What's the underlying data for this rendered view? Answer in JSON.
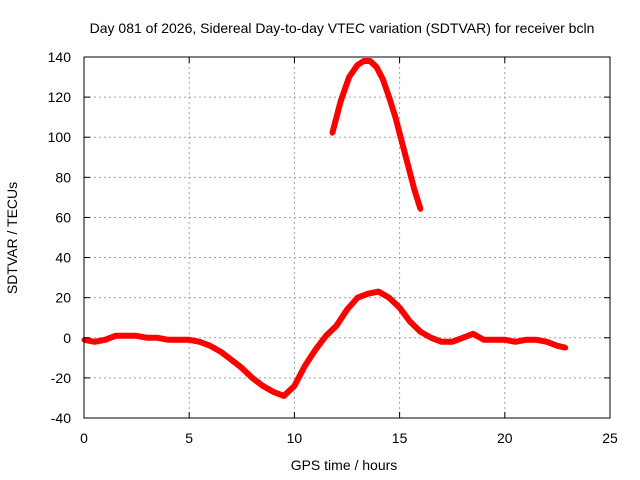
{
  "colors": {
    "series": "#ff0000",
    "axis": "#000000",
    "grid": "#a0a0a0",
    "background": "#ffffff"
  },
  "chart_data": {
    "type": "line",
    "title": "Day 081 of 2026, Sidereal Day-to-day VTEC variation (SDTVAR) for receiver bcln",
    "xlabel": "GPS time / hours",
    "ylabel": "SDTVAR / TECUs",
    "xlim": [
      0,
      25
    ],
    "ylim": [
      -40,
      140
    ],
    "xticks": [
      0,
      5,
      10,
      15,
      20,
      25
    ],
    "yticks": [
      -40,
      -20,
      0,
      20,
      40,
      60,
      80,
      100,
      120,
      140
    ],
    "grid": true,
    "legend": "none",
    "series": [
      {
        "name": "main trace",
        "x": [
          0,
          0.5,
          1.0,
          1.5,
          2.0,
          2.5,
          3.0,
          3.5,
          4.0,
          4.5,
          5.0,
          5.5,
          6.0,
          6.5,
          7.0,
          7.5,
          8.0,
          8.5,
          9.0,
          9.5,
          10.0,
          10.5,
          11.0,
          11.5,
          12.0,
          12.5,
          13.0,
          13.5,
          14.0,
          14.5,
          15.0,
          15.5,
          16.0,
          16.5,
          17.0,
          17.5,
          18.0,
          18.5,
          19.0,
          19.5,
          20.0,
          20.5,
          21.0,
          21.5,
          22.0,
          22.5,
          22.9
        ],
        "y": [
          -1,
          -2,
          -1,
          1,
          1,
          1,
          0,
          0,
          -1,
          -1,
          -1,
          -2,
          -4,
          -7,
          -11,
          -15,
          -20,
          -24,
          -27,
          -29,
          -24,
          -14,
          -6,
          1,
          6,
          14,
          20,
          22,
          23,
          20,
          15,
          8,
          3,
          0,
          -2,
          -2,
          0,
          2,
          -1,
          -1,
          -1,
          -2,
          -1,
          -1,
          -2,
          -4,
          -5
        ]
      },
      {
        "name": "upper arc",
        "x": [
          11.8,
          12.2,
          12.6,
          13.0,
          13.3,
          13.6,
          13.9,
          14.2,
          14.5,
          14.8,
          15.1,
          15.4,
          15.7,
          16.0
        ],
        "y": [
          102,
          118,
          130,
          136,
          138,
          138,
          135,
          129,
          120,
          110,
          98,
          86,
          74,
          64
        ]
      }
    ]
  }
}
